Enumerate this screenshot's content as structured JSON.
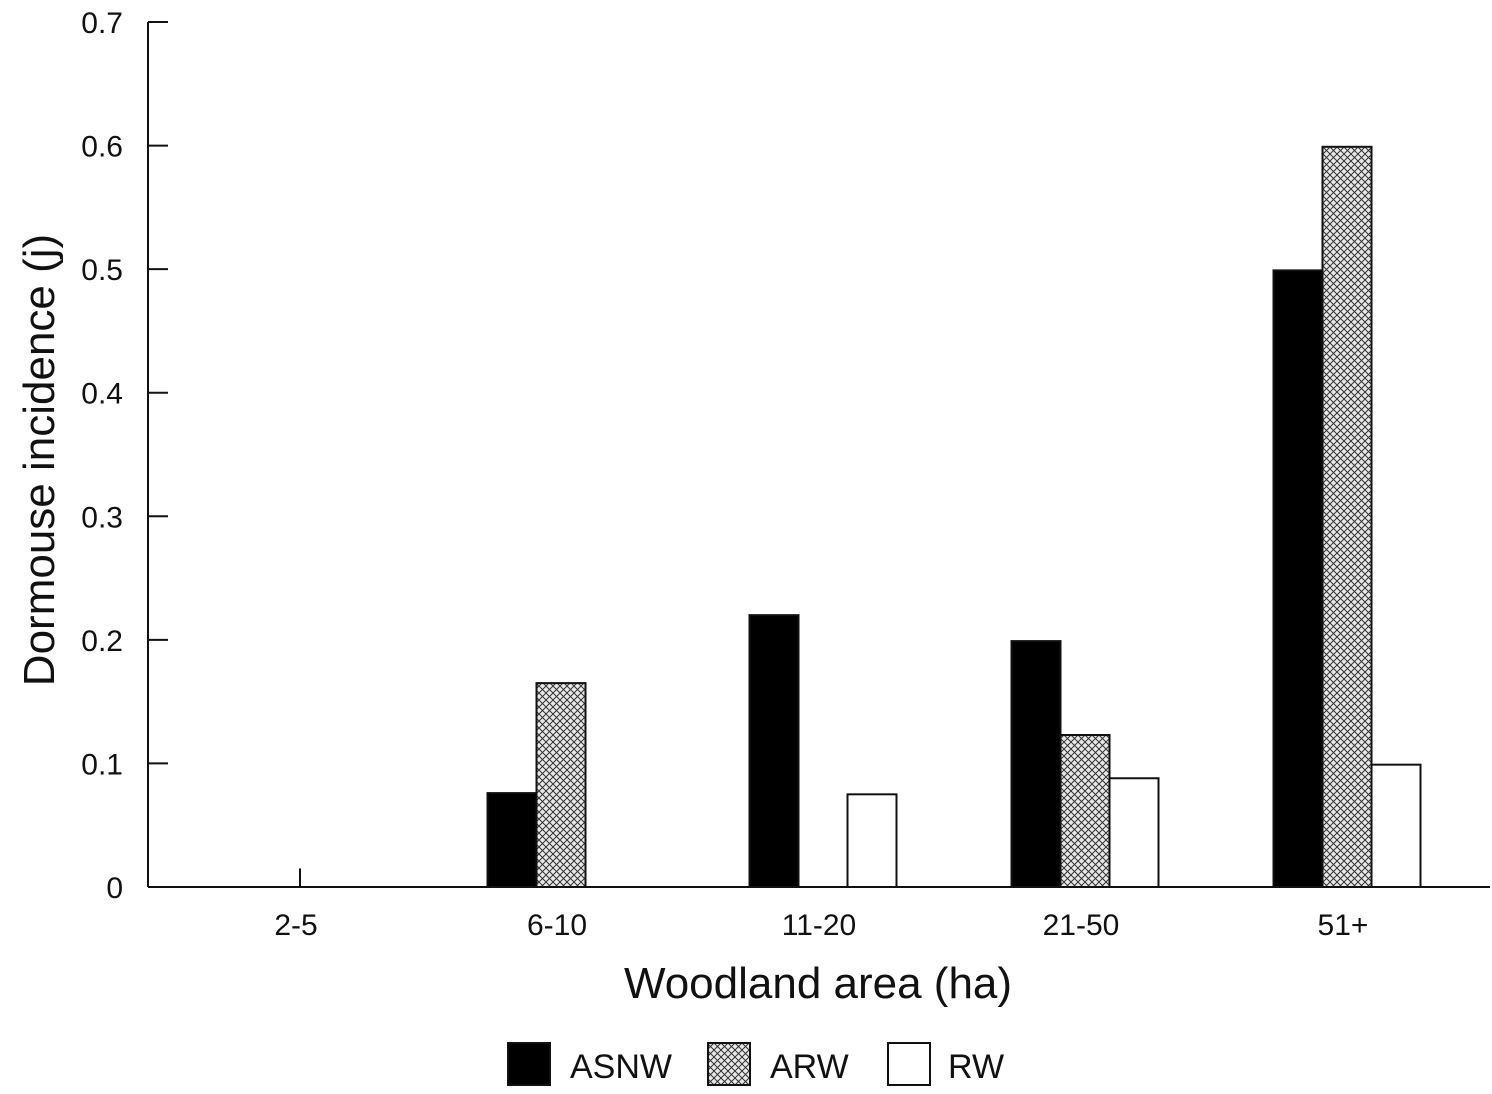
{
  "chart_data": {
    "type": "bar",
    "title": "",
    "xlabel": "Woodland area (ha)",
    "ylabel": "Dormouse incidence (j)",
    "ylim": [
      0,
      0.7
    ],
    "yticks": [
      "0",
      "0.1",
      "0.2",
      "0.3",
      "0.4",
      "0.5",
      "0.6",
      "0.7"
    ],
    "categories": [
      "2-5",
      "6-10",
      "11-20",
      "21-50",
      "51+"
    ],
    "series": [
      {
        "name": "ASNW",
        "values": [
          0,
          0.076,
          0.22,
          0.199,
          0.499
        ]
      },
      {
        "name": "ARW",
        "values": [
          0,
          0.165,
          0,
          0.123,
          0.599
        ]
      },
      {
        "name": "RW",
        "values": [
          0.015,
          0,
          0.075,
          0.088,
          0.099
        ]
      }
    ],
    "grid": false,
    "legend_position": "bottom-center",
    "colors": {
      "ASNW": "#000000",
      "ARW": "crosshatch",
      "RW": "#ffffff"
    }
  }
}
